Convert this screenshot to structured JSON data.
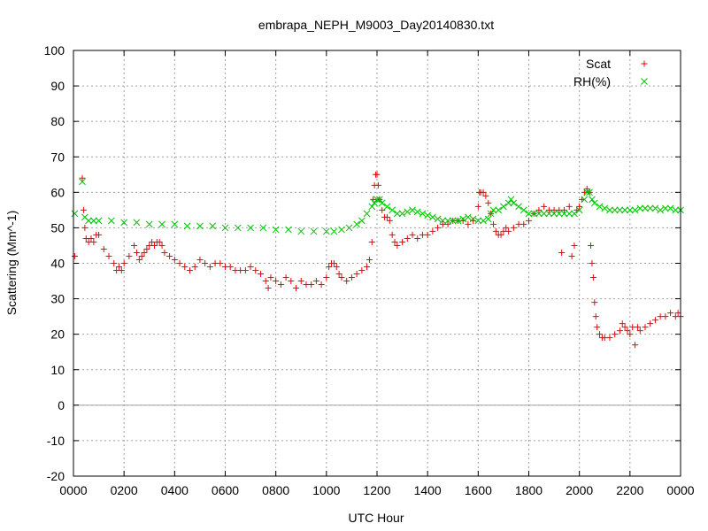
{
  "chart_data": {
    "type": "scatter",
    "title": "embrapa_NEPH_M9003_Day20140830.txt",
    "xlabel": "UTC Hour",
    "ylabel": "Scattering (Mm^-1)",
    "xlim": [
      0,
      24
    ],
    "ylim": [
      -20,
      100
    ],
    "grid": true,
    "legend_position": "top-right",
    "x_ticks": [
      {
        "v": 0,
        "label": "0000"
      },
      {
        "v": 2,
        "label": "0200"
      },
      {
        "v": 4,
        "label": "0400"
      },
      {
        "v": 6,
        "label": "0600"
      },
      {
        "v": 8,
        "label": "0800"
      },
      {
        "v": 10,
        "label": "1000"
      },
      {
        "v": 12,
        "label": "1200"
      },
      {
        "v": 14,
        "label": "1400"
      },
      {
        "v": 16,
        "label": "1600"
      },
      {
        "v": 18,
        "label": "1800"
      },
      {
        "v": 20,
        "label": "2000"
      },
      {
        "v": 22,
        "label": "2200"
      },
      {
        "v": 24,
        "label": "0000"
      }
    ],
    "y_ticks": [
      -20,
      -10,
      0,
      10,
      20,
      30,
      40,
      50,
      60,
      70,
      80,
      90,
      100
    ],
    "series": [
      {
        "name": "Scat",
        "marker": "+",
        "color": "#ff0000",
        "points": [
          [
            0.05,
            42
          ],
          [
            0.35,
            64
          ],
          [
            0.4,
            55
          ],
          [
            0.45,
            50
          ],
          [
            0.5,
            47
          ],
          [
            0.6,
            46
          ],
          [
            0.7,
            47
          ],
          [
            0.8,
            46
          ],
          [
            0.9,
            48
          ],
          [
            1.0,
            48
          ],
          [
            1.2,
            44
          ],
          [
            1.4,
            42
          ],
          [
            1.6,
            40
          ],
          [
            1.7,
            38
          ],
          [
            1.8,
            39
          ],
          [
            1.9,
            38
          ],
          [
            2.0,
            40
          ],
          [
            2.2,
            42
          ],
          [
            2.4,
            45
          ],
          [
            2.5,
            43
          ],
          [
            2.6,
            41
          ],
          [
            2.7,
            42
          ],
          [
            2.8,
            43
          ],
          [
            2.9,
            44
          ],
          [
            3.0,
            45
          ],
          [
            3.1,
            46
          ],
          [
            3.2,
            45
          ],
          [
            3.3,
            46
          ],
          [
            3.4,
            46
          ],
          [
            3.5,
            45
          ],
          [
            3.6,
            43
          ],
          [
            3.8,
            42
          ],
          [
            4.0,
            41
          ],
          [
            4.2,
            40
          ],
          [
            4.4,
            39
          ],
          [
            4.6,
            38
          ],
          [
            4.8,
            39
          ],
          [
            5.0,
            41
          ],
          [
            5.2,
            40
          ],
          [
            5.4,
            39
          ],
          [
            5.6,
            40
          ],
          [
            5.8,
            40
          ],
          [
            6.0,
            39
          ],
          [
            6.2,
            39
          ],
          [
            6.4,
            38
          ],
          [
            6.6,
            38
          ],
          [
            6.8,
            38
          ],
          [
            7.0,
            39
          ],
          [
            7.2,
            38
          ],
          [
            7.4,
            37
          ],
          [
            7.6,
            35
          ],
          [
            7.7,
            33
          ],
          [
            7.8,
            36
          ],
          [
            8.0,
            35
          ],
          [
            8.2,
            34
          ],
          [
            8.4,
            36
          ],
          [
            8.6,
            35
          ],
          [
            8.8,
            33
          ],
          [
            9.0,
            35
          ],
          [
            9.2,
            34
          ],
          [
            9.4,
            34
          ],
          [
            9.6,
            35
          ],
          [
            9.8,
            34
          ],
          [
            10.0,
            36
          ],
          [
            10.1,
            39
          ],
          [
            10.2,
            40
          ],
          [
            10.3,
            40
          ],
          [
            10.4,
            39
          ],
          [
            10.5,
            37
          ],
          [
            10.6,
            36
          ],
          [
            10.8,
            35
          ],
          [
            11.0,
            36
          ],
          [
            11.2,
            37
          ],
          [
            11.4,
            38
          ],
          [
            11.6,
            39
          ],
          [
            11.7,
            41
          ],
          [
            11.8,
            46
          ],
          [
            11.85,
            58
          ],
          [
            11.9,
            62
          ],
          [
            11.95,
            65
          ],
          [
            12.0,
            65
          ],
          [
            12.05,
            62
          ],
          [
            12.1,
            58
          ],
          [
            12.2,
            55
          ],
          [
            12.3,
            53
          ],
          [
            12.4,
            53
          ],
          [
            12.5,
            52
          ],
          [
            12.6,
            48
          ],
          [
            12.7,
            46
          ],
          [
            12.8,
            45
          ],
          [
            13.0,
            46
          ],
          [
            13.2,
            47
          ],
          [
            13.4,
            48
          ],
          [
            13.6,
            47
          ],
          [
            13.8,
            48
          ],
          [
            14.0,
            48
          ],
          [
            14.2,
            49
          ],
          [
            14.4,
            50
          ],
          [
            14.6,
            51
          ],
          [
            14.8,
            51
          ],
          [
            15.0,
            52
          ],
          [
            15.2,
            52
          ],
          [
            15.4,
            52
          ],
          [
            15.6,
            51
          ],
          [
            15.8,
            52
          ],
          [
            16.0,
            56
          ],
          [
            16.05,
            60
          ],
          [
            16.1,
            60
          ],
          [
            16.2,
            60
          ],
          [
            16.3,
            59
          ],
          [
            16.4,
            57
          ],
          [
            16.5,
            54
          ],
          [
            16.6,
            51
          ],
          [
            16.7,
            49
          ],
          [
            16.8,
            48
          ],
          [
            16.9,
            48
          ],
          [
            17.0,
            49
          ],
          [
            17.1,
            50
          ],
          [
            17.2,
            49
          ],
          [
            17.4,
            50
          ],
          [
            17.6,
            51
          ],
          [
            17.8,
            51
          ],
          [
            18.0,
            52
          ],
          [
            18.2,
            54
          ],
          [
            18.4,
            55
          ],
          [
            18.6,
            56
          ],
          [
            18.8,
            55
          ],
          [
            19.0,
            55
          ],
          [
            19.2,
            55
          ],
          [
            19.3,
            43
          ],
          [
            19.4,
            55
          ],
          [
            19.6,
            56
          ],
          [
            19.7,
            42
          ],
          [
            19.8,
            45
          ],
          [
            19.9,
            55
          ],
          [
            20.0,
            56
          ],
          [
            20.1,
            58
          ],
          [
            20.2,
            60
          ],
          [
            20.3,
            61
          ],
          [
            20.4,
            60
          ],
          [
            20.45,
            45
          ],
          [
            20.5,
            40
          ],
          [
            20.55,
            36
          ],
          [
            20.6,
            29
          ],
          [
            20.65,
            25
          ],
          [
            20.7,
            22
          ],
          [
            20.8,
            20
          ],
          [
            20.9,
            19
          ],
          [
            21.0,
            19
          ],
          [
            21.2,
            19
          ],
          [
            21.4,
            20
          ],
          [
            21.6,
            21
          ],
          [
            21.7,
            23
          ],
          [
            21.8,
            22
          ],
          [
            21.9,
            21
          ],
          [
            22.0,
            20
          ],
          [
            22.1,
            22
          ],
          [
            22.2,
            17
          ],
          [
            22.3,
            22
          ],
          [
            22.4,
            21
          ],
          [
            22.6,
            22
          ],
          [
            22.8,
            23
          ],
          [
            23.0,
            24
          ],
          [
            23.2,
            25
          ],
          [
            23.4,
            25
          ],
          [
            23.6,
            26
          ],
          [
            23.8,
            25
          ],
          [
            23.9,
            26
          ],
          [
            24.0,
            25
          ]
        ]
      },
      {
        "name": "RH(%)",
        "marker": "x",
        "color": "#00c000",
        "points": [
          [
            0.05,
            54
          ],
          [
            0.35,
            63
          ],
          [
            0.45,
            53
          ],
          [
            0.6,
            52
          ],
          [
            0.8,
            52
          ],
          [
            1.0,
            52
          ],
          [
            1.5,
            52
          ],
          [
            2.0,
            51.5
          ],
          [
            2.5,
            51.5
          ],
          [
            3.0,
            51
          ],
          [
            3.5,
            51
          ],
          [
            4.0,
            51
          ],
          [
            4.5,
            50.5
          ],
          [
            5.0,
            50.5
          ],
          [
            5.5,
            50.5
          ],
          [
            6.0,
            50
          ],
          [
            6.5,
            50
          ],
          [
            7.0,
            50
          ],
          [
            7.5,
            50
          ],
          [
            8.0,
            49.5
          ],
          [
            8.5,
            49.5
          ],
          [
            9.0,
            49
          ],
          [
            9.5,
            49
          ],
          [
            10.0,
            49
          ],
          [
            10.3,
            49
          ],
          [
            10.6,
            49.5
          ],
          [
            10.9,
            50
          ],
          [
            11.2,
            51
          ],
          [
            11.4,
            52
          ],
          [
            11.6,
            54
          ],
          [
            11.8,
            56
          ],
          [
            11.9,
            57
          ],
          [
            12.0,
            58
          ],
          [
            12.1,
            58
          ],
          [
            12.2,
            57
          ],
          [
            12.4,
            56
          ],
          [
            12.6,
            55
          ],
          [
            12.8,
            54
          ],
          [
            13.0,
            54
          ],
          [
            13.2,
            54.5
          ],
          [
            13.4,
            55
          ],
          [
            13.6,
            54.5
          ],
          [
            13.8,
            54
          ],
          [
            14.0,
            53.5
          ],
          [
            14.2,
            53
          ],
          [
            14.4,
            52.5
          ],
          [
            14.6,
            52
          ],
          [
            14.8,
            52
          ],
          [
            15.0,
            52
          ],
          [
            15.2,
            52
          ],
          [
            15.4,
            52.5
          ],
          [
            15.6,
            53
          ],
          [
            15.8,
            52.5
          ],
          [
            16.0,
            52
          ],
          [
            16.2,
            52
          ],
          [
            16.4,
            52.5
          ],
          [
            16.5,
            54
          ],
          [
            16.6,
            55
          ],
          [
            16.8,
            55
          ],
          [
            17.0,
            56
          ],
          [
            17.2,
            57
          ],
          [
            17.3,
            58
          ],
          [
            17.4,
            57
          ],
          [
            17.6,
            56
          ],
          [
            17.8,
            55
          ],
          [
            18.0,
            54
          ],
          [
            18.2,
            54
          ],
          [
            18.4,
            54
          ],
          [
            18.6,
            54
          ],
          [
            18.8,
            54
          ],
          [
            19.0,
            54
          ],
          [
            19.2,
            54
          ],
          [
            19.4,
            54
          ],
          [
            19.6,
            54
          ],
          [
            19.8,
            54
          ],
          [
            20.0,
            55
          ],
          [
            20.2,
            58
          ],
          [
            20.3,
            60
          ],
          [
            20.4,
            60
          ],
          [
            20.5,
            58
          ],
          [
            20.6,
            57
          ],
          [
            20.8,
            56
          ],
          [
            21.0,
            55.5
          ],
          [
            21.2,
            55
          ],
          [
            21.4,
            55
          ],
          [
            21.6,
            55
          ],
          [
            21.8,
            55
          ],
          [
            22.0,
            55
          ],
          [
            22.2,
            55
          ],
          [
            22.4,
            55.5
          ],
          [
            22.6,
            55.5
          ],
          [
            22.8,
            55.5
          ],
          [
            23.0,
            55.5
          ],
          [
            23.2,
            55
          ],
          [
            23.4,
            55.5
          ],
          [
            23.6,
            55.5
          ],
          [
            23.8,
            55
          ],
          [
            24.0,
            55
          ]
        ]
      }
    ]
  }
}
